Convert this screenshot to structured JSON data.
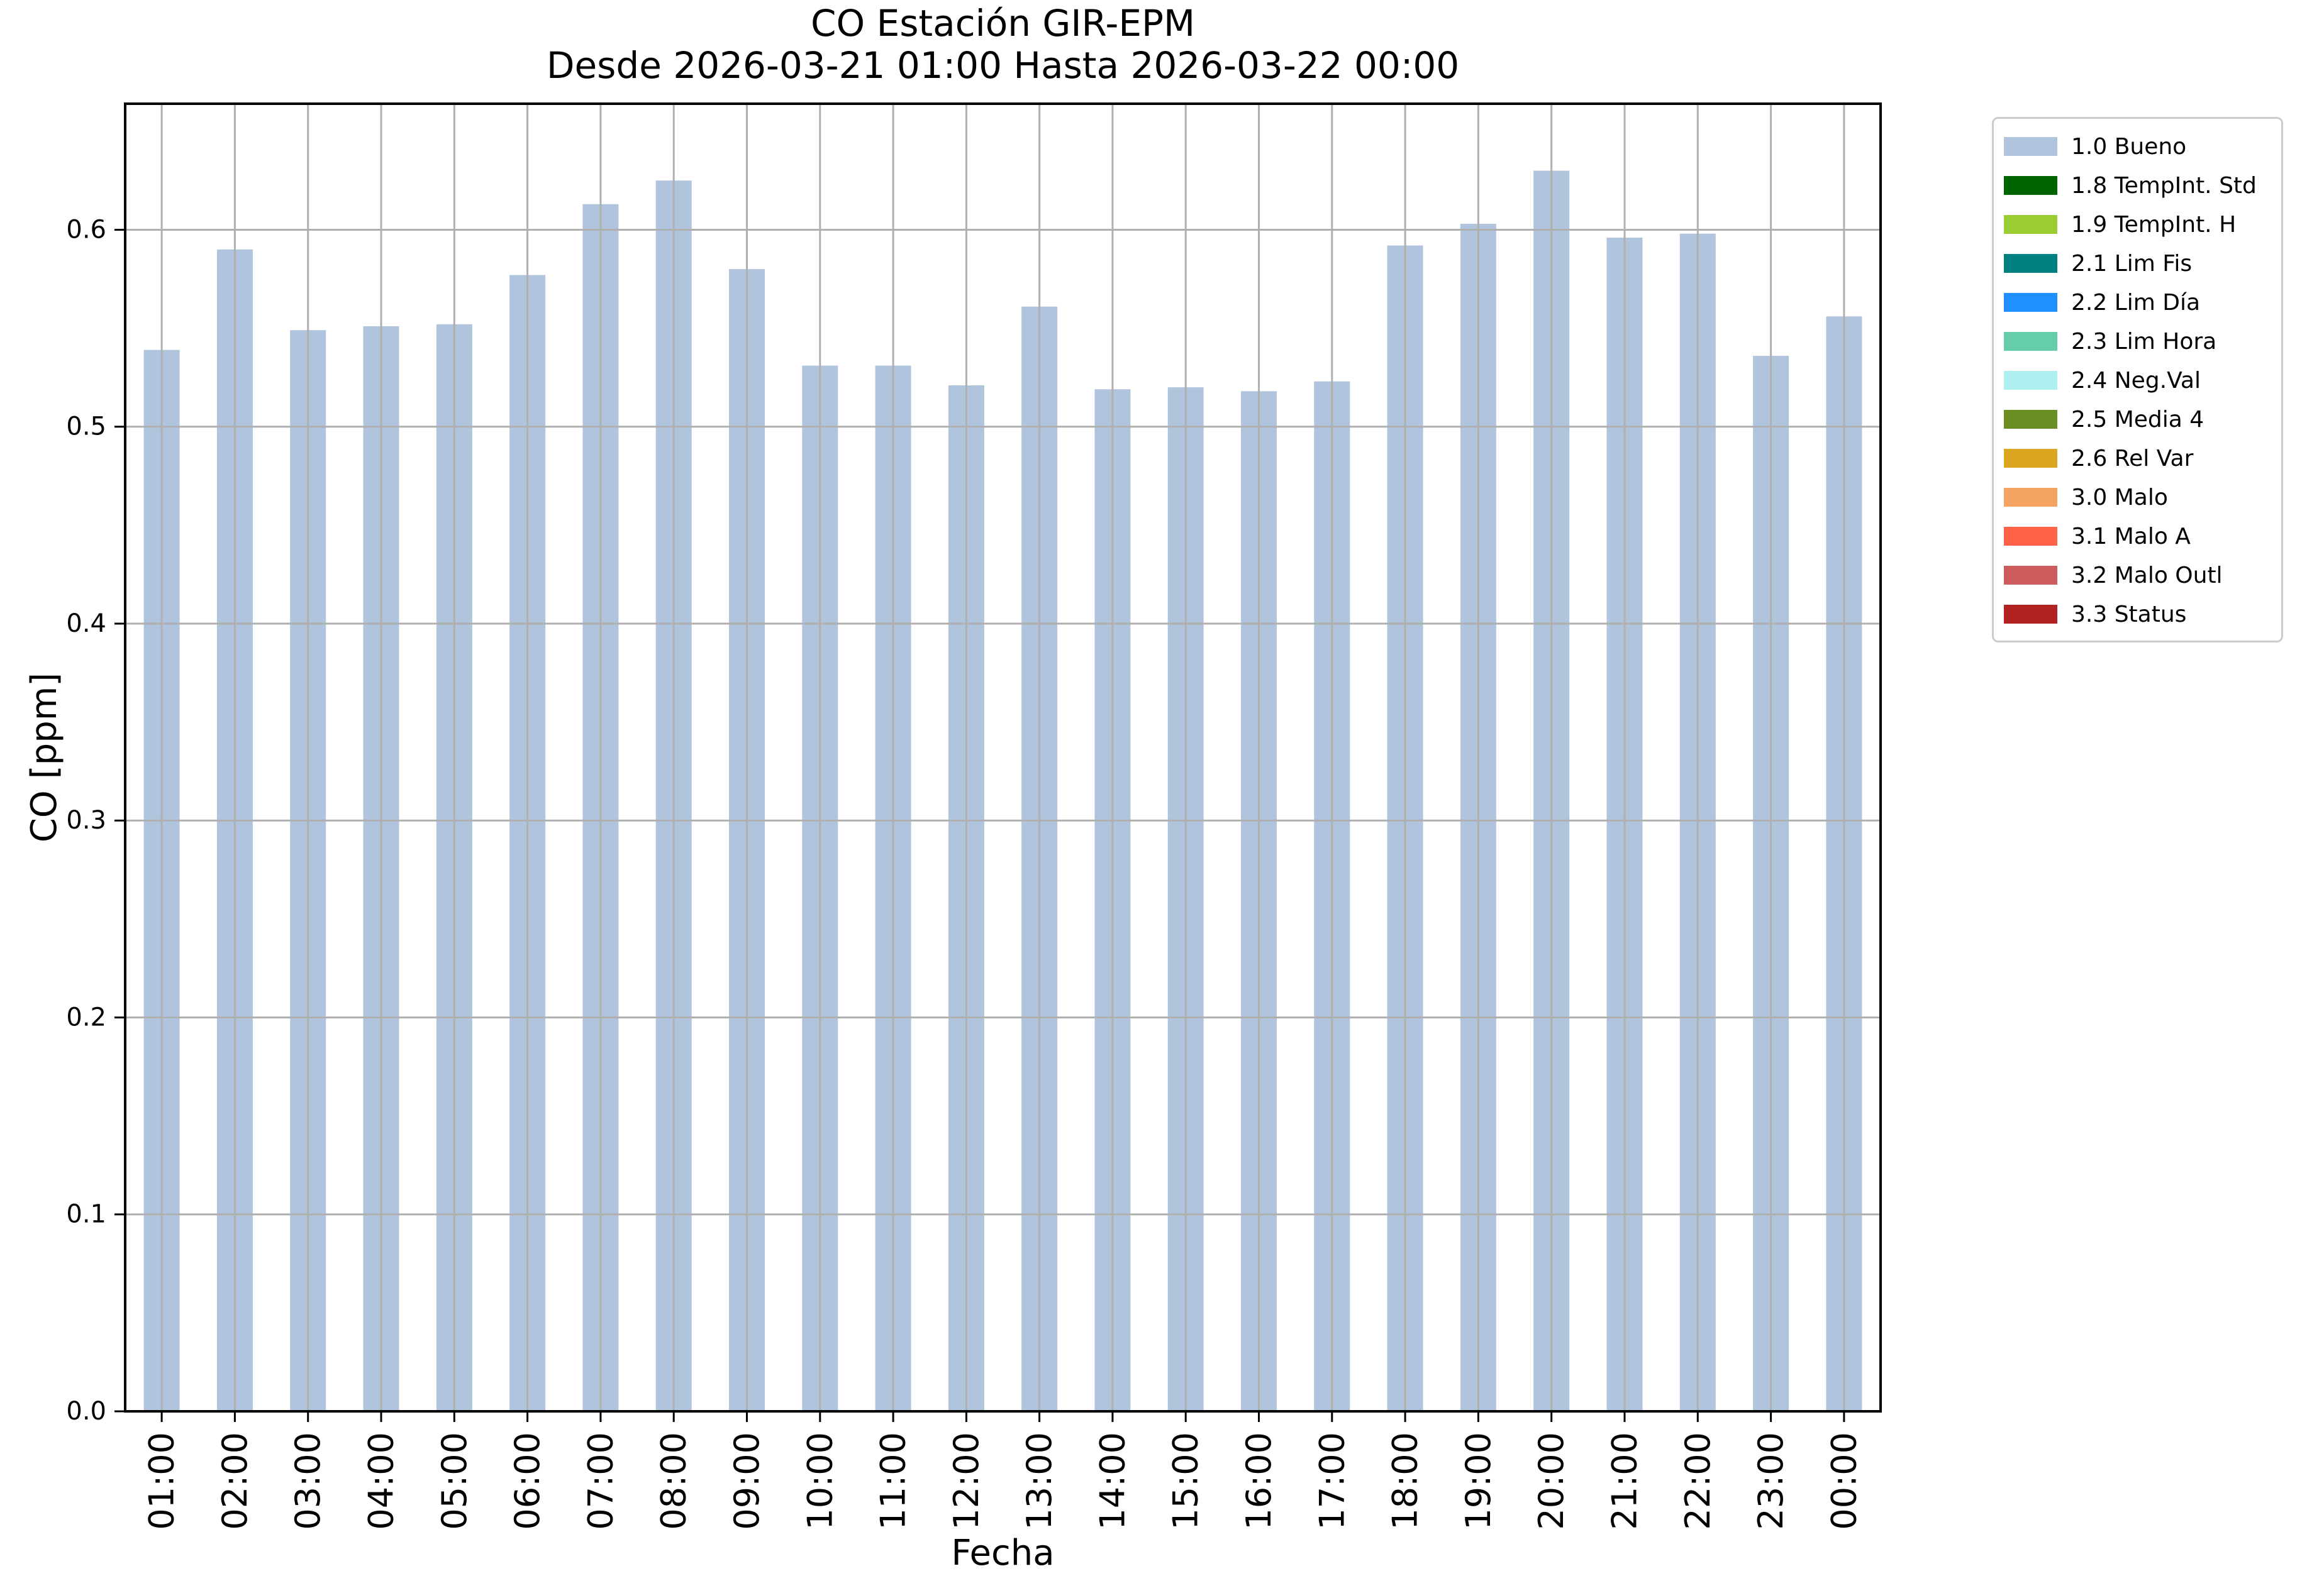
{
  "title": {
    "line1": "CO Estación GIR-EPM",
    "line2": "Desde 2026-03-21 01:00 Hasta 2026-03-22 00:00"
  },
  "axes": {
    "xlabel": "Fecha",
    "ylabel": "CO [ppm]"
  },
  "chart_data": {
    "type": "bar",
    "title": "CO Estación GIR-EPM — Desde 2026-03-21 01:00 Hasta 2026-03-22 00:00",
    "xlabel": "Fecha",
    "ylabel": "CO [ppm]",
    "series_name": "1.0 Bueno",
    "categories": [
      "01:00",
      "02:00",
      "03:00",
      "04:00",
      "05:00",
      "06:00",
      "07:00",
      "08:00",
      "09:00",
      "10:00",
      "11:00",
      "12:00",
      "13:00",
      "14:00",
      "15:00",
      "16:00",
      "17:00",
      "18:00",
      "19:00",
      "20:00",
      "21:00",
      "22:00",
      "23:00",
      "00:00"
    ],
    "values": [
      0.539,
      0.59,
      0.549,
      0.551,
      0.552,
      0.577,
      0.613,
      0.625,
      0.58,
      0.531,
      0.531,
      0.521,
      0.561,
      0.519,
      0.52,
      0.518,
      0.523,
      0.592,
      0.603,
      0.63,
      0.596,
      0.598,
      0.536,
      0.556
    ],
    "ylim": [
      0,
      0.664
    ],
    "yticks": [
      "0.0",
      "0.1",
      "0.2",
      "0.3",
      "0.4",
      "0.5",
      "0.6"
    ],
    "grid": true,
    "grid_over_bars": true,
    "bar_color": "#b0c4de",
    "grid_color": "#b0b0b0",
    "spine_color": "#000000",
    "legend_position": "outside-right"
  },
  "legend": {
    "items": [
      {
        "label": "1.0 Bueno",
        "color": "#b0c4de"
      },
      {
        "label": "1.8 TempInt. Std",
        "color": "#006400"
      },
      {
        "label": "1.9 TempInt. H",
        "color": "#9acd32"
      },
      {
        "label": "2.1 Lim Fis",
        "color": "#008080"
      },
      {
        "label": "2.2 Lim Día",
        "color": "#1e90ff"
      },
      {
        "label": "2.3 Lim Hora",
        "color": "#66cdaa"
      },
      {
        "label": "2.4 Neg.Val",
        "color": "#afeeee"
      },
      {
        "label": "2.5 Media 4",
        "color": "#6b8e23"
      },
      {
        "label": "2.6 Rel Var",
        "color": "#daa520"
      },
      {
        "label": "3.0 Malo",
        "color": "#f4a460"
      },
      {
        "label": "3.1 Malo A",
        "color": "#ff6347"
      },
      {
        "label": "3.2 Malo Outl",
        "color": "#cd5c5c"
      },
      {
        "label": "3.3 Status",
        "color": "#b22222"
      }
    ]
  }
}
